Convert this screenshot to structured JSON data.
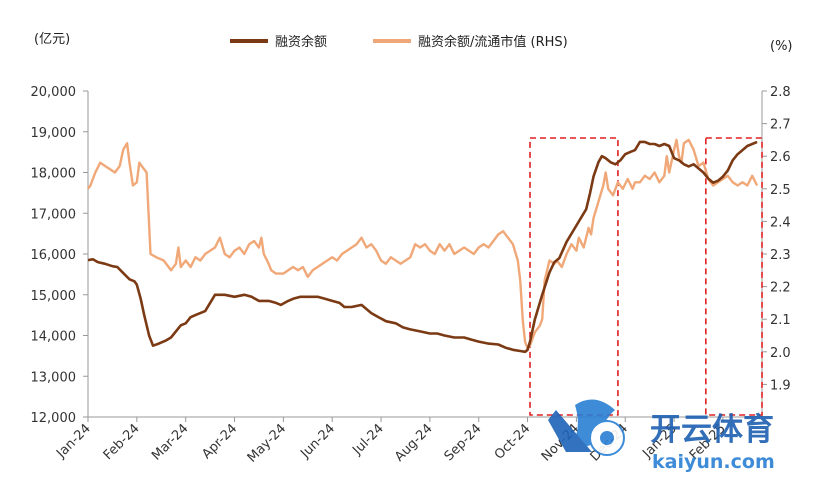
{
  "chart_data": {
    "type": "line",
    "left_unit": "(亿元)",
    "right_unit": "(%)",
    "x_ticks": [
      "Jan-24",
      "Feb-24",
      "Mar-24",
      "Apr-24",
      "May-24",
      "Jun-24",
      "Jul-24",
      "Aug-24",
      "Sep-24",
      "Oct-24",
      "Nov-24",
      "Dec-24",
      "Jan-25",
      "Feb-25"
    ],
    "y_left": {
      "min": 12000,
      "max": 20000,
      "step": 1000,
      "ticks": [
        "12,000",
        "13,000",
        "14,000",
        "15,000",
        "16,000",
        "17,000",
        "18,000",
        "19,000",
        "20,000"
      ]
    },
    "y_right": {
      "min": 1.8,
      "max": 2.8,
      "step": 0.1,
      "ticks": [
        "1.9",
        "2.0",
        "2.1",
        "2.2",
        "2.3",
        "2.4",
        "2.5",
        "2.6",
        "2.7",
        "2.8"
      ]
    },
    "x_range": [
      0,
      13.8
    ],
    "series": [
      {
        "name": "融资余额",
        "axis": "left",
        "color": "#7B3A14",
        "points": [
          [
            0,
            15850
          ],
          [
            0.1,
            15870
          ],
          [
            0.2,
            15800
          ],
          [
            0.35,
            15760
          ],
          [
            0.5,
            15700
          ],
          [
            0.6,
            15680
          ],
          [
            0.75,
            15500
          ],
          [
            0.85,
            15380
          ],
          [
            0.95,
            15330
          ],
          [
            1.0,
            15250
          ],
          [
            1.08,
            14900
          ],
          [
            1.15,
            14500
          ],
          [
            1.25,
            14000
          ],
          [
            1.33,
            13750
          ],
          [
            1.45,
            13800
          ],
          [
            1.6,
            13880
          ],
          [
            1.7,
            13950
          ],
          [
            1.8,
            14100
          ],
          [
            1.9,
            14250
          ],
          [
            2.0,
            14300
          ],
          [
            2.1,
            14450
          ],
          [
            2.2,
            14500
          ],
          [
            2.3,
            14550
          ],
          [
            2.4,
            14600
          ],
          [
            2.5,
            14800
          ],
          [
            2.6,
            15000
          ],
          [
            2.8,
            15000
          ],
          [
            3.0,
            14950
          ],
          [
            3.2,
            15000
          ],
          [
            3.35,
            14950
          ],
          [
            3.5,
            14850
          ],
          [
            3.7,
            14850
          ],
          [
            3.85,
            14800
          ],
          [
            3.95,
            14750
          ],
          [
            4.1,
            14850
          ],
          [
            4.2,
            14900
          ],
          [
            4.35,
            14950
          ],
          [
            4.5,
            14950
          ],
          [
            4.7,
            14950
          ],
          [
            4.85,
            14900
          ],
          [
            5.0,
            14850
          ],
          [
            5.15,
            14800
          ],
          [
            5.25,
            14700
          ],
          [
            5.4,
            14700
          ],
          [
            5.6,
            14750
          ],
          [
            5.7,
            14650
          ],
          [
            5.8,
            14550
          ],
          [
            5.95,
            14450
          ],
          [
            6.1,
            14350
          ],
          [
            6.3,
            14300
          ],
          [
            6.45,
            14200
          ],
          [
            6.6,
            14150
          ],
          [
            6.8,
            14100
          ],
          [
            7.0,
            14050
          ],
          [
            7.15,
            14050
          ],
          [
            7.3,
            14000
          ],
          [
            7.5,
            13950
          ],
          [
            7.7,
            13950
          ],
          [
            7.85,
            13900
          ],
          [
            8.0,
            13850
          ],
          [
            8.2,
            13800
          ],
          [
            8.4,
            13780
          ],
          [
            8.55,
            13700
          ],
          [
            8.7,
            13650
          ],
          [
            8.85,
            13620
          ],
          [
            8.95,
            13600
          ],
          [
            9.0,
            13650
          ],
          [
            9.05,
            13850
          ],
          [
            9.15,
            14400
          ],
          [
            9.3,
            15000
          ],
          [
            9.45,
            15550
          ],
          [
            9.55,
            15800
          ],
          [
            9.65,
            15900
          ],
          [
            9.8,
            16300
          ],
          [
            10.0,
            16700
          ],
          [
            10.1,
            16900
          ],
          [
            10.2,
            17100
          ],
          [
            10.28,
            17500
          ],
          [
            10.35,
            17900
          ],
          [
            10.45,
            18250
          ],
          [
            10.52,
            18400
          ],
          [
            10.6,
            18350
          ],
          [
            10.7,
            18250
          ],
          [
            10.8,
            18200
          ],
          [
            10.9,
            18300
          ],
          [
            11.0,
            18450
          ],
          [
            11.1,
            18500
          ],
          [
            11.2,
            18550
          ],
          [
            11.3,
            18750
          ],
          [
            11.4,
            18750
          ],
          [
            11.5,
            18700
          ],
          [
            11.6,
            18700
          ],
          [
            11.7,
            18650
          ],
          [
            11.8,
            18700
          ],
          [
            11.9,
            18650
          ],
          [
            12.0,
            18350
          ],
          [
            12.1,
            18300
          ],
          [
            12.2,
            18200
          ],
          [
            12.3,
            18150
          ],
          [
            12.4,
            18200
          ],
          [
            12.5,
            18100
          ],
          [
            12.6,
            18000
          ],
          [
            12.7,
            17850
          ],
          [
            12.8,
            17750
          ],
          [
            12.9,
            17800
          ],
          [
            13.0,
            17900
          ],
          [
            13.1,
            18050
          ],
          [
            13.2,
            18300
          ],
          [
            13.3,
            18450
          ],
          [
            13.4,
            18550
          ],
          [
            13.5,
            18650
          ],
          [
            13.6,
            18700
          ],
          [
            13.7,
            18750
          ]
        ]
      },
      {
        "name": "融资余额/流通市值 (RHS)",
        "axis": "right",
        "color": "#F0A878",
        "points": [
          [
            0,
            2.5
          ],
          [
            0.05,
            2.51
          ],
          [
            0.15,
            2.55
          ],
          [
            0.25,
            2.58
          ],
          [
            0.35,
            2.57
          ],
          [
            0.45,
            2.56
          ],
          [
            0.55,
            2.55
          ],
          [
            0.65,
            2.57
          ],
          [
            0.72,
            2.62
          ],
          [
            0.8,
            2.64
          ],
          [
            0.85,
            2.58
          ],
          [
            0.92,
            2.51
          ],
          [
            1.0,
            2.52
          ],
          [
            1.05,
            2.58
          ],
          [
            1.1,
            2.57
          ],
          [
            1.2,
            2.55
          ],
          [
            1.28,
            2.3
          ],
          [
            1.4,
            2.29
          ],
          [
            1.55,
            2.28
          ],
          [
            1.65,
            2.26
          ],
          [
            1.7,
            2.25
          ],
          [
            1.8,
            2.27
          ],
          [
            1.85,
            2.32
          ],
          [
            1.9,
            2.26
          ],
          [
            2.0,
            2.28
          ],
          [
            2.1,
            2.26
          ],
          [
            2.2,
            2.29
          ],
          [
            2.3,
            2.28
          ],
          [
            2.4,
            2.3
          ],
          [
            2.5,
            2.31
          ],
          [
            2.6,
            2.32
          ],
          [
            2.7,
            2.35
          ],
          [
            2.8,
            2.3
          ],
          [
            2.9,
            2.29
          ],
          [
            3.0,
            2.31
          ],
          [
            3.1,
            2.32
          ],
          [
            3.2,
            2.3
          ],
          [
            3.3,
            2.33
          ],
          [
            3.4,
            2.34
          ],
          [
            3.5,
            2.32
          ],
          [
            3.55,
            2.35
          ],
          [
            3.6,
            2.3
          ],
          [
            3.7,
            2.27
          ],
          [
            3.75,
            2.25
          ],
          [
            3.85,
            2.24
          ],
          [
            4.0,
            2.24
          ],
          [
            4.1,
            2.25
          ],
          [
            4.2,
            2.26
          ],
          [
            4.3,
            2.25
          ],
          [
            4.4,
            2.26
          ],
          [
            4.5,
            2.23
          ],
          [
            4.6,
            2.25
          ],
          [
            4.7,
            2.26
          ],
          [
            4.8,
            2.27
          ],
          [
            4.9,
            2.28
          ],
          [
            5.0,
            2.29
          ],
          [
            5.1,
            2.28
          ],
          [
            5.2,
            2.3
          ],
          [
            5.3,
            2.31
          ],
          [
            5.4,
            2.32
          ],
          [
            5.5,
            2.33
          ],
          [
            5.6,
            2.35
          ],
          [
            5.7,
            2.32
          ],
          [
            5.8,
            2.33
          ],
          [
            5.9,
            2.31
          ],
          [
            6.0,
            2.28
          ],
          [
            6.1,
            2.27
          ],
          [
            6.2,
            2.29
          ],
          [
            6.3,
            2.28
          ],
          [
            6.4,
            2.27
          ],
          [
            6.5,
            2.28
          ],
          [
            6.6,
            2.29
          ],
          [
            6.7,
            2.33
          ],
          [
            6.8,
            2.32
          ],
          [
            6.9,
            2.33
          ],
          [
            7.0,
            2.31
          ],
          [
            7.1,
            2.3
          ],
          [
            7.2,
            2.33
          ],
          [
            7.3,
            2.31
          ],
          [
            7.4,
            2.33
          ],
          [
            7.5,
            2.3
          ],
          [
            7.6,
            2.31
          ],
          [
            7.7,
            2.32
          ],
          [
            7.8,
            2.31
          ],
          [
            7.9,
            2.3
          ],
          [
            8.0,
            2.32
          ],
          [
            8.1,
            2.33
          ],
          [
            8.2,
            2.32
          ],
          [
            8.3,
            2.34
          ],
          [
            8.4,
            2.36
          ],
          [
            8.5,
            2.37
          ],
          [
            8.6,
            2.35
          ],
          [
            8.7,
            2.33
          ],
          [
            8.8,
            2.28
          ],
          [
            8.85,
            2.22
          ],
          [
            8.9,
            2.1
          ],
          [
            8.95,
            2.03
          ],
          [
            9.0,
            2.01
          ],
          [
            9.05,
            2.02
          ],
          [
            9.1,
            2.04
          ],
          [
            9.15,
            2.06
          ],
          [
            9.25,
            2.08
          ],
          [
            9.3,
            2.1
          ],
          [
            9.35,
            2.22
          ],
          [
            9.45,
            2.28
          ],
          [
            9.55,
            2.27
          ],
          [
            9.6,
            2.28
          ],
          [
            9.7,
            2.26
          ],
          [
            9.8,
            2.3
          ],
          [
            9.9,
            2.33
          ],
          [
            10.0,
            2.31
          ],
          [
            10.05,
            2.35
          ],
          [
            10.15,
            2.32
          ],
          [
            10.25,
            2.38
          ],
          [
            10.3,
            2.36
          ],
          [
            10.35,
            2.41
          ],
          [
            10.45,
            2.46
          ],
          [
            10.55,
            2.51
          ],
          [
            10.6,
            2.55
          ],
          [
            10.65,
            2.5
          ],
          [
            10.75,
            2.48
          ],
          [
            10.85,
            2.52
          ],
          [
            10.95,
            2.5
          ],
          [
            11.05,
            2.53
          ],
          [
            11.15,
            2.5
          ],
          [
            11.2,
            2.52
          ],
          [
            11.3,
            2.52
          ],
          [
            11.4,
            2.54
          ],
          [
            11.5,
            2.53
          ],
          [
            11.6,
            2.55
          ],
          [
            11.7,
            2.52
          ],
          [
            11.8,
            2.54
          ],
          [
            11.85,
            2.6
          ],
          [
            11.9,
            2.55
          ],
          [
            12.0,
            2.62
          ],
          [
            12.05,
            2.65
          ],
          [
            12.1,
            2.6
          ],
          [
            12.15,
            2.58
          ],
          [
            12.2,
            2.64
          ],
          [
            12.3,
            2.65
          ],
          [
            12.4,
            2.62
          ],
          [
            12.5,
            2.57
          ],
          [
            12.6,
            2.58
          ],
          [
            12.7,
            2.53
          ],
          [
            12.8,
            2.51
          ],
          [
            12.9,
            2.52
          ],
          [
            13.0,
            2.53
          ],
          [
            13.1,
            2.54
          ],
          [
            13.2,
            2.52
          ],
          [
            13.3,
            2.51
          ],
          [
            13.4,
            2.52
          ],
          [
            13.5,
            2.51
          ],
          [
            13.6,
            2.54
          ],
          [
            13.7,
            2.51
          ]
        ]
      }
    ],
    "highlights": [
      {
        "x0": 9.05,
        "x1": 10.85
      },
      {
        "x0": 12.65,
        "x1": 13.8
      }
    ]
  },
  "watermark": {
    "brand": "开云体育",
    "domain": "kaiyun.com"
  }
}
